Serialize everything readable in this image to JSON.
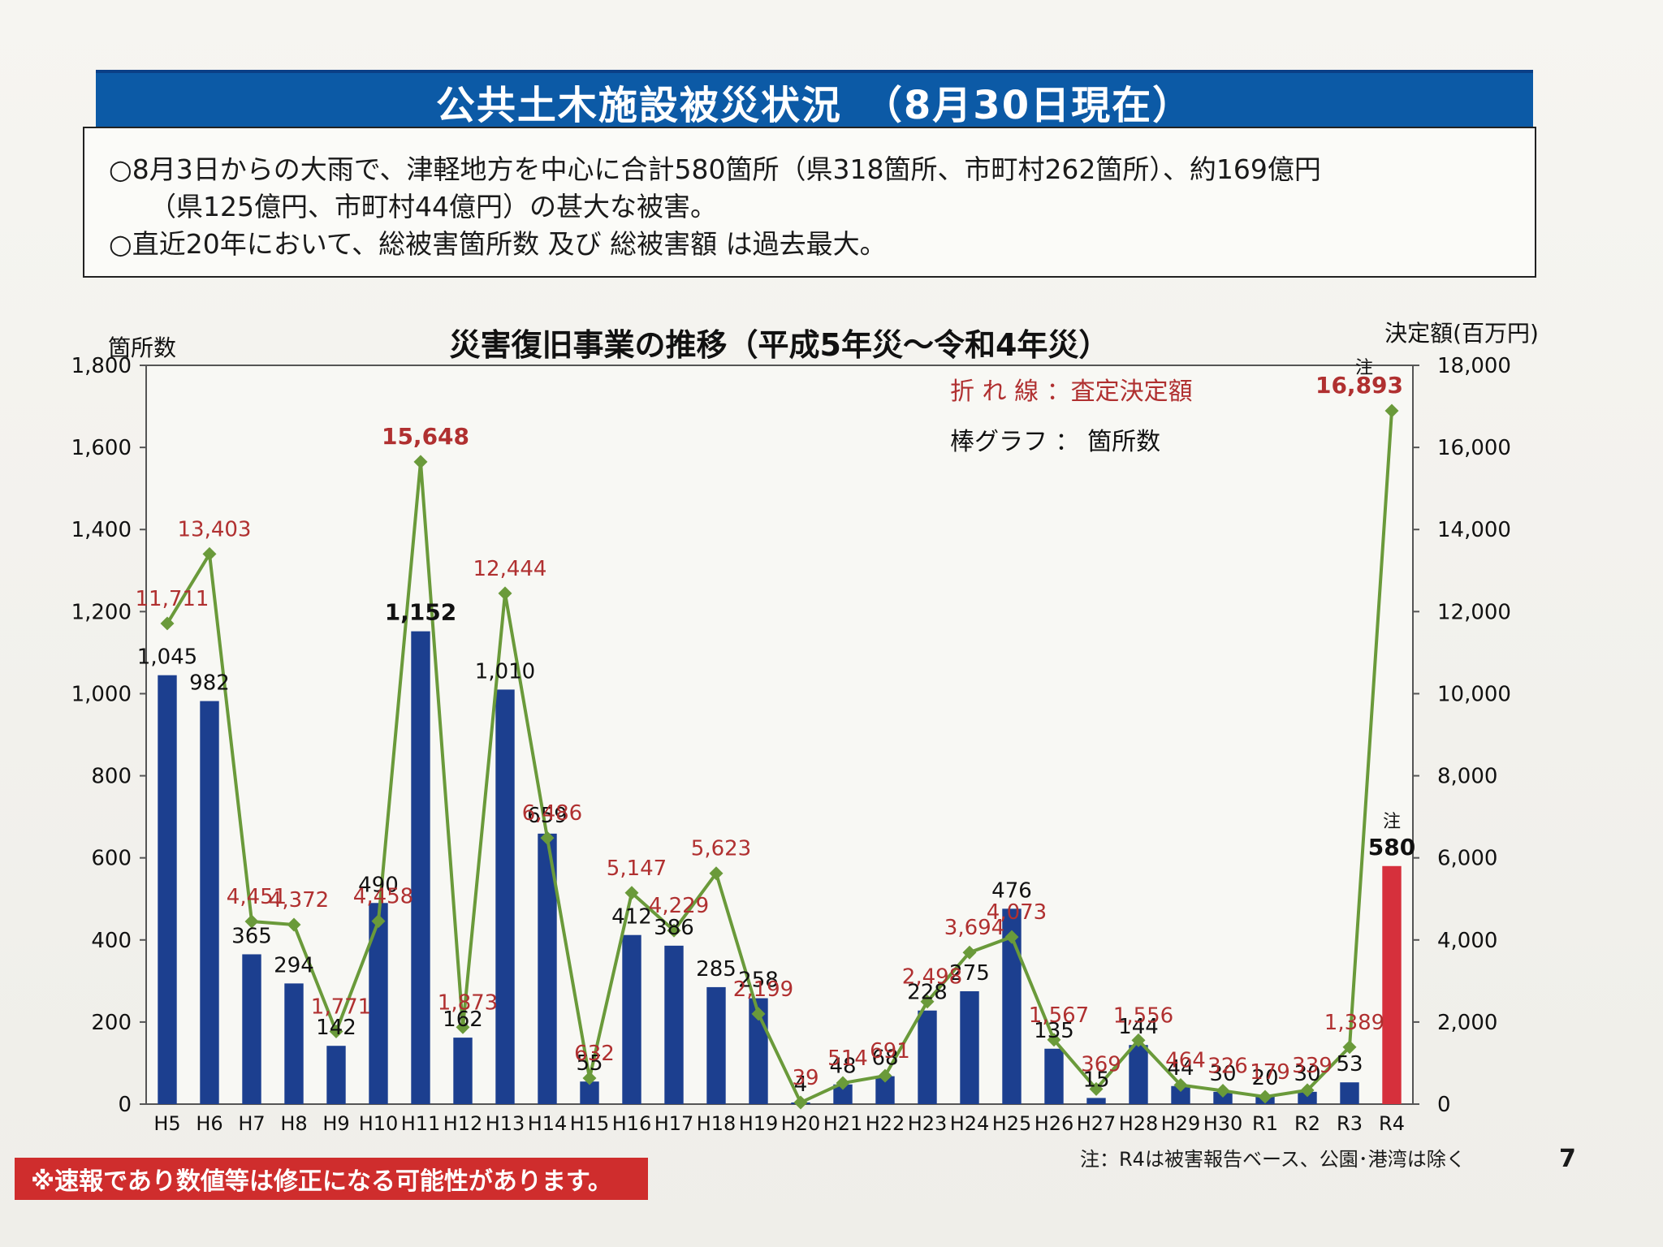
{
  "header": {
    "title": "公共土木施設被災状況　（8月30日現在）"
  },
  "summary": {
    "line1": "○8月3日からの大雨で、津軽地方を中心に合計580箇所（県318箇所、市町村262箇所）、約169億円",
    "line2": "（県125億円、市町村44億円）の甚大な被害。",
    "line3": "○直近20年において、総被害箇所数 及び 総被害額 は過去最大。"
  },
  "colors": {
    "bar": "#1c3f8f",
    "bar_highlight": "#d6303c",
    "line": "#6a9a3a",
    "amount_label": "#b03030"
  },
  "chart_data": {
    "type": "bar+line",
    "title": "災害復旧事業の推移（平成5年災～令和4年災）",
    "y_left_label": "箇所数",
    "y_right_label": "決定額(百万円)",
    "ylim_left": [
      0,
      1800
    ],
    "ylim_right": [
      0,
      18000
    ],
    "y_left_ticks": [
      "0",
      "200",
      "400",
      "600",
      "800",
      "1,000",
      "1,200",
      "1,400",
      "1,600",
      "1,800"
    ],
    "y_right_ticks": [
      "0",
      "2,000",
      "4,000",
      "6,000",
      "8,000",
      "10,000",
      "12,000",
      "14,000",
      "16,000",
      "18,000"
    ],
    "legend": {
      "line": "折 れ 線 ：査定決定額",
      "bar": "棒グラフ ：  箇所数"
    },
    "categories": [
      "H5",
      "H6",
      "H7",
      "H8",
      "H9",
      "H10",
      "H11",
      "H12",
      "H13",
      "H14",
      "H15",
      "H16",
      "H17",
      "H18",
      "H19",
      "H20",
      "H21",
      "H22",
      "H23",
      "H24",
      "H25",
      "H26",
      "H27",
      "H28",
      "H29",
      "H30",
      "R1",
      "R2",
      "R3",
      "R4"
    ],
    "series": [
      {
        "name": "箇所数",
        "type": "bar",
        "values": [
          1045,
          982,
          365,
          294,
          142,
          490,
          1152,
          162,
          1010,
          659,
          55,
          412,
          386,
          285,
          258,
          4,
          48,
          68,
          228,
          275,
          476,
          135,
          15,
          144,
          44,
          30,
          20,
          30,
          53,
          580
        ],
        "labels": [
          "1,045",
          "982",
          "365",
          "294",
          "142",
          "490",
          "1,152",
          "162",
          "1,010",
          "659",
          "55",
          "412",
          "386",
          "285",
          "258",
          "4",
          "48",
          "68",
          "228",
          "275",
          "476",
          "135",
          "15",
          "144",
          "44",
          "30",
          "20",
          "30",
          "53",
          "580"
        ]
      },
      {
        "name": "査定決定額",
        "type": "line",
        "values": [
          11711,
          13403,
          4451,
          4372,
          1771,
          4458,
          15648,
          1873,
          12444,
          6486,
          632,
          5147,
          4229,
          5623,
          2199,
          39,
          514,
          691,
          2498,
          3694,
          4073,
          1567,
          369,
          1556,
          464,
          326,
          179,
          339,
          1389,
          16893
        ],
        "labels": [
          "11,711",
          "13,403",
          "4,451",
          "4,372",
          "1,771",
          "4,458",
          "15,648",
          "1,873",
          "12,444",
          "6,486",
          "632",
          "5,147",
          "4,229",
          "5,623",
          "2,199",
          "39",
          "514",
          "691",
          "2,498",
          "3,694",
          "4,073",
          "1,567",
          "369",
          "1,556",
          "464",
          "326",
          "179",
          "339",
          "1,389",
          "16,893"
        ]
      }
    ],
    "note_marker": "注"
  },
  "footer": {
    "note": "注：R4は被害報告ベース、公園･港湾は除く",
    "page": "7",
    "disclaimer": "※速報であり数値等は修正になる可能性があります。"
  }
}
